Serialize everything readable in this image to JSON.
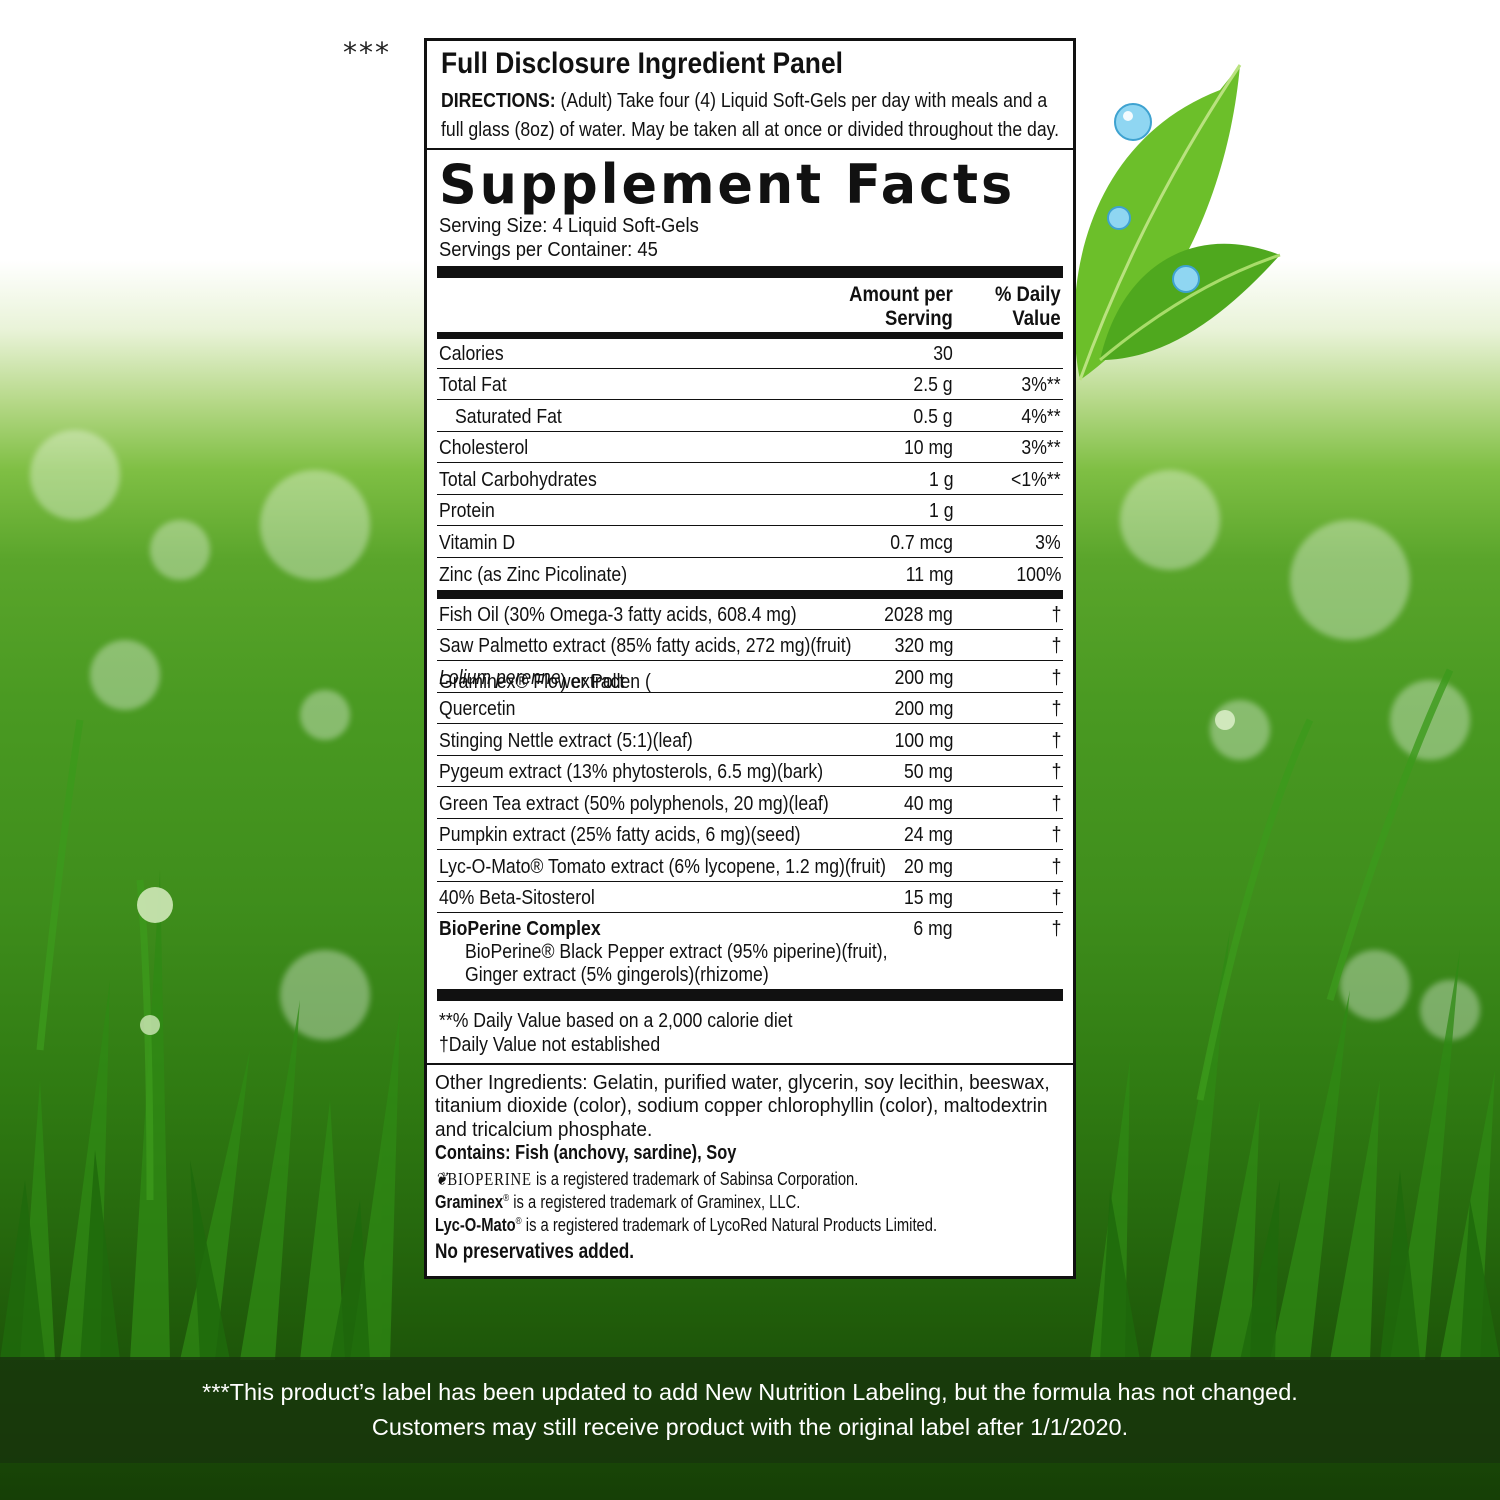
{
  "stars_marker": "***",
  "panel": {
    "header_title": "Full Disclosure Ingredient Panel",
    "directions_label": "DIRECTIONS:",
    "directions_line1": " (Adult) Take four (4) Liquid Soft-Gels per day with meals and a",
    "directions_line2": "full glass (8oz) of water. May be taken all at once or divided throughout the day.",
    "facts_title": "Supplement Facts",
    "serving_size": "Serving Size:  4 Liquid Soft-Gels",
    "servings_per_container": "Servings per Container:  45",
    "col_amount_line1": "Amount per",
    "col_amount_line2": "Serving",
    "col_dv_line1": "% Daily",
    "col_dv_line2": "Value",
    "nutrients": [
      {
        "name": "Calories",
        "amount": "30",
        "dv": ""
      },
      {
        "name": "Total Fat",
        "amount": "2.5 g",
        "dv": "3%**"
      },
      {
        "name": "Saturated Fat",
        "amount": "0.5 g",
        "dv": "4%**"
      },
      {
        "name": "Cholesterol",
        "amount": "10 mg",
        "dv": "3%**"
      },
      {
        "name": "Total Carbohydrates",
        "amount": "1 g",
        "dv": "<1%**"
      },
      {
        "name": "Protein",
        "amount": "1 g",
        "dv": ""
      },
      {
        "name": "Vitamin D",
        "amount": "0.7 mcg",
        "dv": "3%"
      },
      {
        "name": "Zinc (as Zinc Picolinate)",
        "amount": "11 mg",
        "dv": "100%"
      }
    ],
    "ingredients": [
      {
        "name": "Fish Oil (30% Omega-3 fatty acids, 608.4 mg)",
        "amount": "2028 mg",
        "dv": "†"
      },
      {
        "name": "Saw Palmetto extract (85% fatty acids, 272 mg)(fruit)",
        "amount": "320 mg",
        "dv": "†"
      },
      {
        "name_pre": "Graminex® Flower Pollen (",
        "name_italic": "Lolium perenne",
        "name_post": ") extract",
        "amount": "200 mg",
        "dv": "†"
      },
      {
        "name": "Quercetin",
        "amount": "200 mg",
        "dv": "†"
      },
      {
        "name": "Stinging Nettle extract (5:1)(leaf)",
        "amount": "100 mg",
        "dv": "†"
      },
      {
        "name": "Pygeum extract (13% phytosterols, 6.5 mg)(bark)",
        "amount": "50 mg",
        "dv": "†"
      },
      {
        "name": "Green Tea extract (50% polyphenols, 20 mg)(leaf)",
        "amount": "40 mg",
        "dv": "†"
      },
      {
        "name": "Pumpkin extract (25% fatty acids, 6 mg)(seed)",
        "amount": "24 mg",
        "dv": "†"
      },
      {
        "name": "Lyc-O-Mato® Tomato extract (6% lycopene, 1.2 mg)(fruit)",
        "amount": "20 mg",
        "dv": "†"
      },
      {
        "name": "40% Beta-Sitosterol",
        "amount": "15 mg",
        "dv": "†"
      }
    ],
    "bioperine": {
      "name": "BioPerine Complex",
      "amount": "6 mg",
      "dv": "†",
      "sub1": "BioPerine® Black Pepper extract (95% piperine)(fruit),",
      "sub2": "Ginger extract (5% gingerols)(rhizome)"
    },
    "footnote1": "**% Daily Value based on a 2,000 calorie diet",
    "footnote2": "†Daily Value not established",
    "other_line1": "Other Ingredients:  Gelatin, purified water, glycerin, soy lecithin, beeswax,",
    "other_line2": "titanium dioxide (color), sodium copper chlorophyllin (color), maltodextrin",
    "other_line3": "and tricalcium phosphate.",
    "contains_label": "Contains:",
    "contains_value": " Fish (anchovy, sardine), Soy",
    "tm_bioperine_brand": "BIOPERINE",
    "tm_bioperine_text": " is a registered trademark of Sabinsa Corporation.",
    "tm_graminex_brand": "Graminex",
    "tm_graminex_text": " is a registered trademark of Graminex, LLC.",
    "tm_lycomato_brand": "Lyc-O-Mato",
    "tm_lycomato_text": " is a registered trademark of LycoRed Natural Products Limited.",
    "no_preservatives": "No preservatives added."
  },
  "footer": {
    "line1": "***This product’s label has been updated to add New Nutrition Labeling, but the formula has not changed.",
    "line2": "Customers may still receive product with the original label after 1/1/2020."
  }
}
